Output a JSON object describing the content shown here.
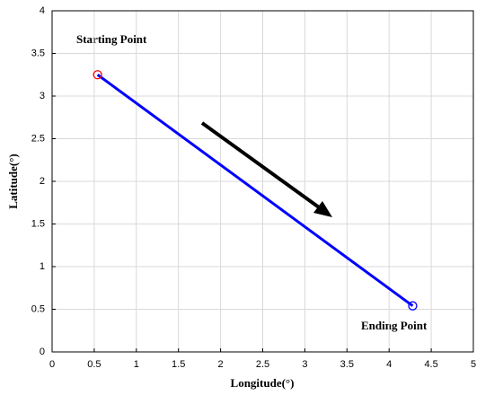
{
  "chart_data": {
    "type": "line",
    "xlabel": "Longitude(°)",
    "ylabel": "Latitude(°)",
    "xlim": [
      0,
      5
    ],
    "xticks": [
      0,
      0.5,
      1,
      1.5,
      2,
      2.5,
      3,
      3.5,
      4,
      4.5,
      5
    ],
    "ylim": [
      0,
      4
    ],
    "yticks": [
      0,
      0.5,
      1,
      1.5,
      2,
      2.5,
      3,
      3.5,
      4
    ],
    "grid": true,
    "series": [
      {
        "color": "#0000ff",
        "x": [
          0.54,
          4.28
        ],
        "values": [
          3.25,
          0.54
        ]
      },
      {
        "color": "#ff0000",
        "marker": "circle",
        "x": [
          0.54
        ],
        "values": [
          3.25
        ]
      },
      {
        "color": "#0000ff",
        "marker": "circle",
        "x": [
          4.28
        ],
        "values": [
          0.54
        ]
      }
    ],
    "annotations": [
      "Starting Point",
      "Ending Point"
    ]
  }
}
